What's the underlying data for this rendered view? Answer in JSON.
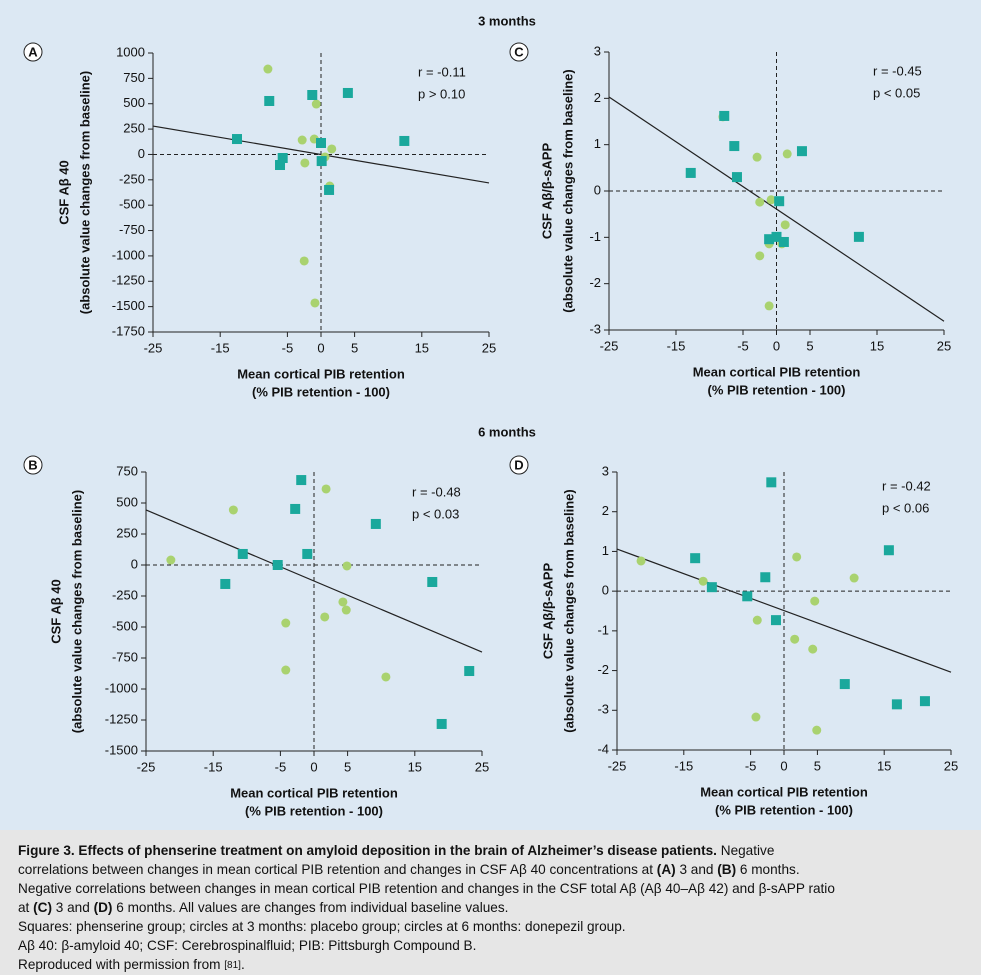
{
  "headings": [
    "3 months",
    "6 months"
  ],
  "chart_data": [
    {
      "type": "scatter",
      "panel_label": "A",
      "ylabel": [
        "CSF Aβ 40",
        "(absolute value changes from baseline)"
      ],
      "xlabel": [
        "Mean cortical PIB retention",
        "(% PIB retention - 100)"
      ],
      "annotations": [
        "r = -0.11",
        "p > 0.10"
      ],
      "xlim": [
        -25,
        25
      ],
      "xticks": [
        -25,
        -15,
        -5,
        0,
        5,
        15,
        25
      ],
      "ylim": [
        -1750,
        1000
      ],
      "yticks": [
        1000,
        750,
        500,
        250,
        0,
        -250,
        -500,
        -750,
        -1000,
        -1250,
        -1500,
        -1750
      ],
      "reference_lines": {
        "x": 0,
        "y": 0
      },
      "trend_line": {
        "x": [
          -25,
          25
        ],
        "y": [
          280,
          -281
        ],
        "color": "#222222"
      },
      "series": [
        {
          "marker": "square",
          "color": "#1aa89c",
          "x": [
            -12.5,
            -7.7,
            -1.3,
            4.0,
            12.4,
            -5.7,
            -6.1,
            0.0,
            0.1,
            1.2
          ],
          "values": [
            152,
            527,
            586,
            606,
            133,
            -35,
            -104,
            113,
            -65,
            -350
          ]
        },
        {
          "marker": "circle",
          "color": "#a9d26f",
          "x": [
            -7.9,
            -0.7,
            -2.8,
            -1.0,
            1.6,
            0.6,
            -2.4,
            1.3,
            -2.5,
            -0.9
          ],
          "values": [
            842,
            497,
            142,
            152,
            54,
            -25,
            -84,
            -311,
            -1050,
            -1464
          ]
        }
      ]
    },
    {
      "type": "scatter",
      "panel_label": "C",
      "ylabel": [
        "CSF Aβ/β-sAPP",
        "(absolute value changes from baseline)"
      ],
      "xlabel": [
        "Mean cortical PIB retention",
        "(% PIB retention - 100)"
      ],
      "annotations": [
        "r = -0.45",
        "p < 0.05"
      ],
      "xlim": [
        -25,
        25
      ],
      "xticks": [
        -25,
        -15,
        -5,
        0,
        5,
        15,
        25
      ],
      "ylim": [
        -3,
        3
      ],
      "yticks": [
        3,
        2,
        1,
        0,
        -1,
        -2,
        -3
      ],
      "reference_lines": {
        "x": 0,
        "y": 0
      },
      "trend_line": {
        "x": [
          -25,
          25
        ],
        "y": [
          2.03,
          -2.81
        ],
        "color": "#222222"
      },
      "series": [
        {
          "marker": "square",
          "color": "#1aa89c",
          "x": [
            -7.8,
            -6.3,
            -5.9,
            -12.8,
            3.8,
            12.3,
            0.4,
            0.0,
            -1.1,
            1.1
          ],
          "values": [
            1.62,
            0.97,
            0.3,
            0.39,
            0.86,
            -0.99,
            -0.22,
            -0.99,
            -1.04,
            -1.1
          ]
        },
        {
          "marker": "circle",
          "color": "#a9d26f",
          "x": [
            -8.0,
            -2.9,
            1.6,
            -2.5,
            -0.8,
            -1.1,
            0.8,
            1.3,
            -2.5,
            -1.1
          ],
          "values": [
            1.6,
            0.73,
            0.8,
            -0.24,
            -0.19,
            -1.14,
            -1.14,
            -0.73,
            -1.4,
            -2.48
          ]
        }
      ]
    },
    {
      "type": "scatter",
      "panel_label": "B",
      "ylabel": [
        "CSF Aβ 40",
        "(absolute value changes from baseline)"
      ],
      "xlabel": [
        "Mean cortical PIB retention",
        "(% PIB retention - 100)"
      ],
      "annotations": [
        "r = -0.48",
        "p < 0.03"
      ],
      "xlim": [
        -25,
        25
      ],
      "xticks": [
        -25,
        -15,
        -5,
        0,
        5,
        15,
        25
      ],
      "ylim": [
        -1500,
        750
      ],
      "yticks": [
        750,
        500,
        250,
        0,
        -250,
        -500,
        -750,
        -1000,
        -1250,
        -1500
      ],
      "reference_lines": {
        "x": 0,
        "y": 0
      },
      "trend_line": {
        "x": [
          -25,
          25
        ],
        "y": [
          444,
          -702
        ],
        "color": "#222222"
      },
      "series": [
        {
          "marker": "square",
          "color": "#1aa89c",
          "x": [
            -1.9,
            -2.8,
            9.2,
            -1.0,
            -10.6,
            -5.4,
            -13.2,
            17.6,
            23.1,
            19.0
          ],
          "values": [
            685,
            452,
            331,
            89,
            89,
            0,
            -153,
            -137,
            -855,
            -1282
          ]
        },
        {
          "marker": "circle",
          "color": "#a9d26f",
          "x": [
            1.8,
            -12.0,
            -21.3,
            4.9,
            4.3,
            4.8,
            1.6,
            -4.2,
            -4.2,
            10.7
          ],
          "values": [
            613,
            444,
            40,
            -8,
            -298,
            -363,
            -419,
            -468,
            -847,
            -903
          ]
        }
      ]
    },
    {
      "type": "scatter",
      "panel_label": "D",
      "ylabel": [
        "CSF Aβ/β-sAPP",
        "(absolute value changes from baseline)"
      ],
      "xlabel": [
        "Mean cortical PIB retention",
        "(% PIB retention - 100)"
      ],
      "annotations": [
        "r = -0.42",
        "p < 0.06"
      ],
      "xlim": [
        -25,
        25
      ],
      "xticks": [
        -25,
        -15,
        -5,
        0,
        5,
        15,
        25
      ],
      "ylim": [
        -4,
        3
      ],
      "yticks": [
        3,
        2,
        1,
        0,
        -1,
        -2,
        -3,
        -4
      ],
      "reference_lines": {
        "x": 0,
        "y": 0
      },
      "trend_line": {
        "x": [
          -25,
          25
        ],
        "y": [
          1.06,
          -2.04
        ],
        "color": "#222222"
      },
      "series": [
        {
          "marker": "square",
          "color": "#1aa89c",
          "x": [
            -1.9,
            -13.3,
            -2.8,
            -10.8,
            -5.5,
            -1.2,
            15.7,
            9.1,
            16.9,
            21.1
          ],
          "values": [
            2.74,
            0.83,
            0.35,
            0.1,
            -0.13,
            -0.73,
            1.03,
            -2.34,
            -2.85,
            -2.77
          ]
        },
        {
          "marker": "circle",
          "color": "#a9d26f",
          "x": [
            -21.4,
            -12.1,
            1.9,
            10.5,
            4.6,
            -4.0,
            1.6,
            4.3,
            -4.2,
            4.9
          ],
          "values": [
            0.76,
            0.25,
            0.86,
            0.33,
            -0.25,
            -0.73,
            -1.21,
            -1.46,
            -3.17,
            -3.5
          ]
        }
      ]
    }
  ],
  "caption": {
    "lines": [
      [
        {
          "text": "Figure 3. Effects of phenserine treatment on amyloid deposition in the brain of Alzheimer’s disease patients.",
          "bold": true
        },
        {
          "text": " Negative"
        }
      ],
      [
        {
          "text": "correlations between changes in mean cortical PIB retention and changes in CSF Aβ 40 concentrations at "
        },
        {
          "text": "(A)",
          "bold": true
        },
        {
          "text": " 3 and "
        },
        {
          "text": "(B)",
          "bold": true
        },
        {
          "text": " 6 months."
        }
      ],
      [
        {
          "text": "Negative correlations between changes in mean cortical PIB retention and changes in the CSF total Aβ (Aβ 40–Aβ 42) and β-sAPP ratio"
        }
      ],
      [
        {
          "text": "at "
        },
        {
          "text": "(C)",
          "bold": true
        },
        {
          "text": " 3 and "
        },
        {
          "text": "(D)",
          "bold": true
        },
        {
          "text": " 6 months. All values are changes from individual baseline values."
        }
      ],
      [
        {
          "text": "Squares: phenserine group; circles at 3 months: placebo group; circles at 6 months: donepezil group."
        }
      ],
      [
        {
          "text": "Aβ 40: β-amyloid 40; CSF: Cerebrospinalfluid; PIB: Pittsburgh Compound B."
        }
      ],
      [
        {
          "text": "Reproduced with permission from "
        },
        {
          "text": "[81]",
          "small": true
        },
        {
          "text": "."
        }
      ]
    ]
  }
}
